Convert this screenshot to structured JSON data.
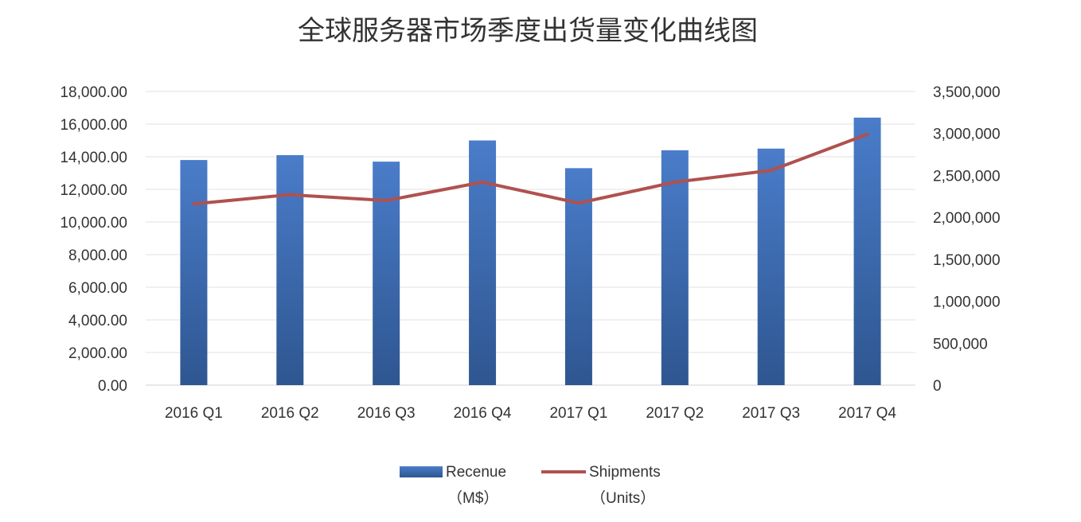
{
  "chart_data": {
    "type": "bar",
    "title": "全球服务器市场季度出货量变化曲线图",
    "categories": [
      "2016 Q1",
      "2016 Q2",
      "2016 Q3",
      "2016 Q4",
      "2017 Q1",
      "2017 Q2",
      "2017 Q3",
      "2017 Q4"
    ],
    "series": [
      {
        "name": "Recenue（M$）",
        "type": "bar",
        "axis": "left",
        "values": [
          13800,
          14100,
          13700,
          15000,
          13300,
          14400,
          14500,
          16400
        ],
        "color": "#4472c4"
      },
      {
        "name": "Shipments（Units）",
        "type": "line",
        "axis": "right",
        "values": [
          2160000,
          2270000,
          2200000,
          2420000,
          2170000,
          2420000,
          2560000,
          2990000
        ],
        "color": "#b0514f"
      }
    ],
    "y_left": {
      "lim": [
        0,
        18000
      ],
      "ticks": [
        "0.00",
        "2,000.00",
        "4,000.00",
        "6,000.00",
        "8,000.00",
        "10,000.00",
        "12,000.00",
        "14,000.00",
        "16,000.00",
        "18,000.00"
      ]
    },
    "y_right": {
      "lim": [
        0,
        3500000
      ],
      "ticks": [
        "0",
        "500,000",
        "1,000,000",
        "1,500,000",
        "2,000,000",
        "2,500,000",
        "3,000,000",
        "3,500,000"
      ]
    },
    "grid": true,
    "legend_position": "bottom",
    "legend": {
      "bar_name": "Recenue",
      "bar_unit": "（M$）",
      "line_name": "Shipments",
      "line_unit": "（Units）"
    }
  }
}
